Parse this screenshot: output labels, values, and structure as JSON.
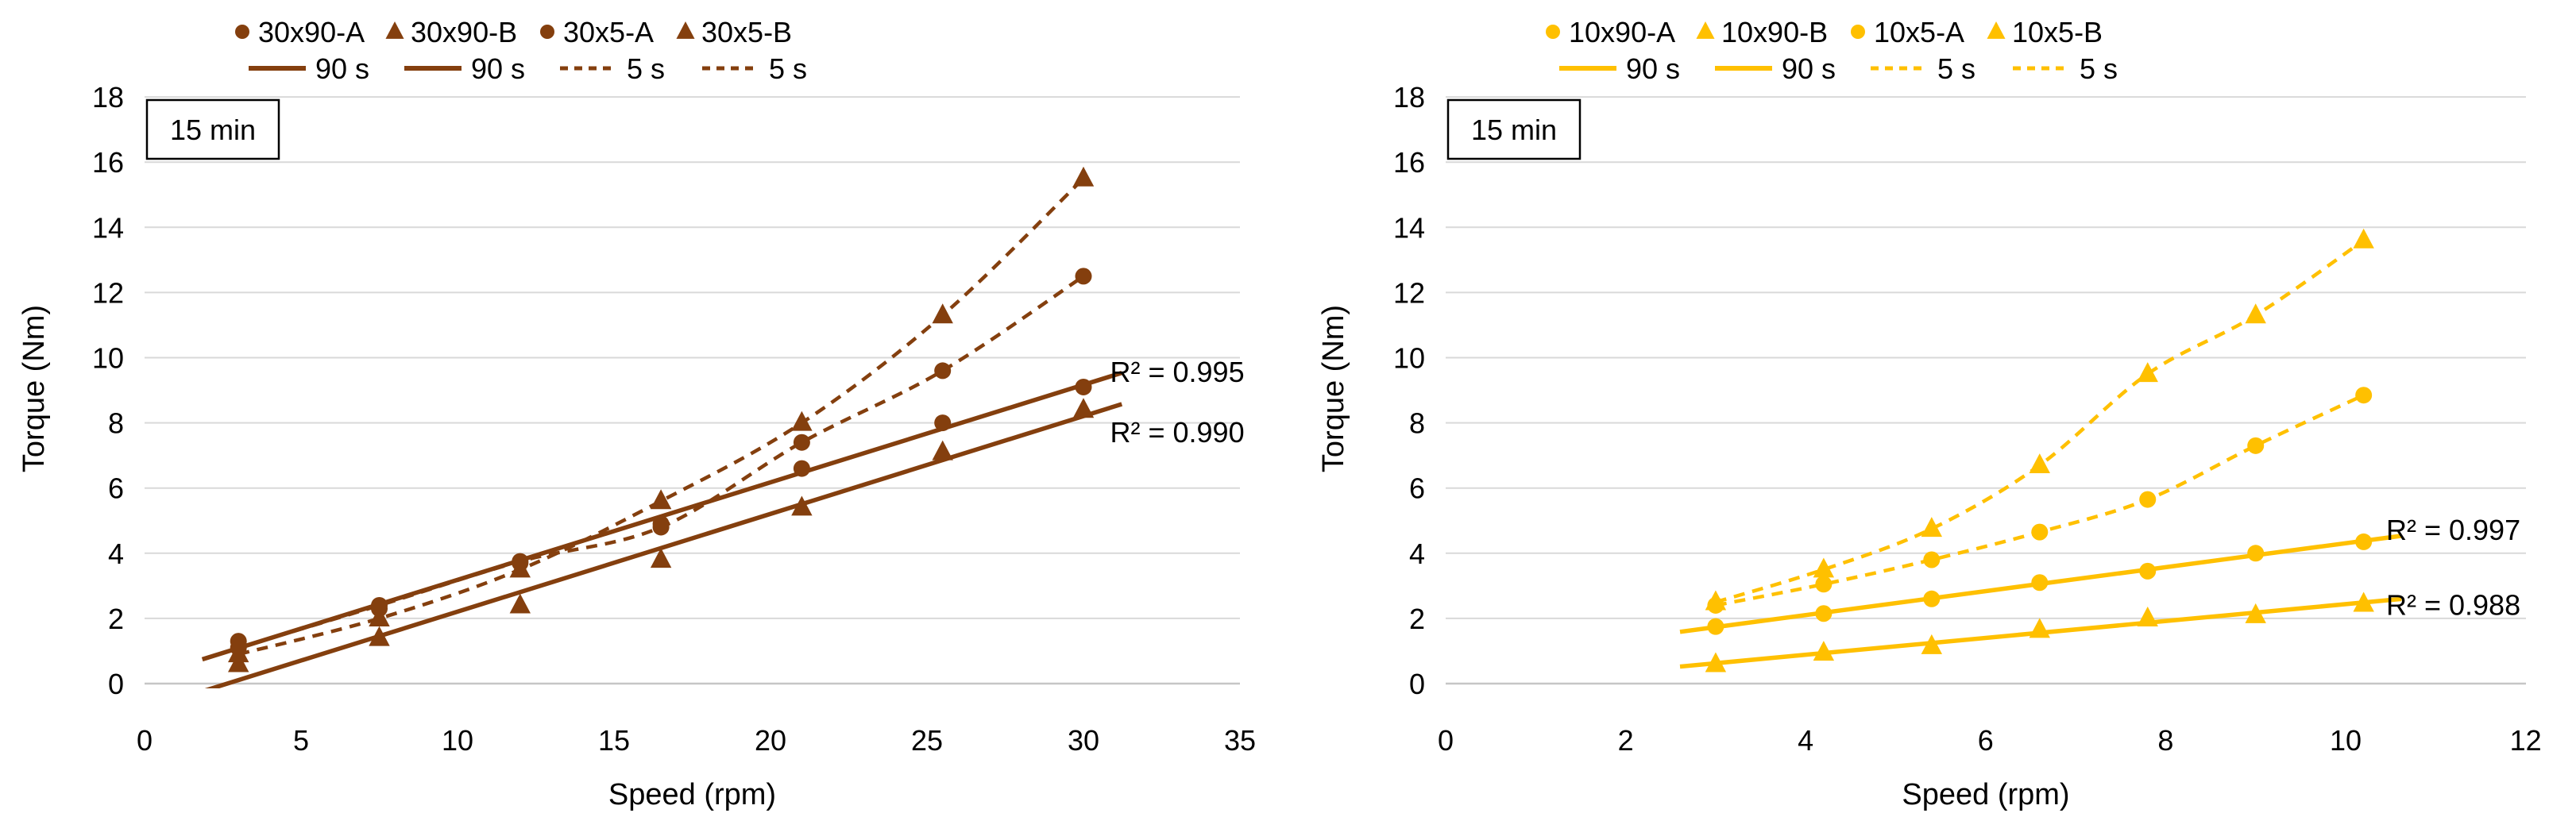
{
  "page": {
    "background": "#FFFFFF"
  },
  "chart_data": [
    {
      "type": "scatter",
      "title": "",
      "annotation_box": "15 min",
      "xlabel": "Speed (rpm)",
      "ylabel": "Torque (Nm)",
      "xlim": [
        0,
        35
      ],
      "ylim": [
        0,
        18
      ],
      "x_ticks": [
        0,
        5,
        10,
        15,
        20,
        25,
        30,
        35
      ],
      "y_ticks": [
        0,
        2,
        4,
        6,
        8,
        10,
        12,
        14,
        16,
        18
      ],
      "grid": true,
      "legend_position": "top",
      "color": "#843F0E",
      "grid_color": "#D9D9D9",
      "legend_markers": [
        {
          "label": "30x90-A",
          "marker": "circle"
        },
        {
          "label": "30x90-B",
          "marker": "triangle"
        },
        {
          "label": "30x5-A",
          "marker": "circle"
        },
        {
          "label": "30x5-B",
          "marker": "triangle"
        }
      ],
      "legend_lines": [
        {
          "label": "90 s",
          "style": "solid"
        },
        {
          "label": "90 s",
          "style": "solid"
        },
        {
          "label": "5 s",
          "style": "dashed"
        },
        {
          "label": "5 s",
          "style": "dashed"
        }
      ],
      "series": [
        {
          "name": "30x90-A",
          "marker": "circle",
          "trend": "linear",
          "line_style": "solid",
          "x": [
            3,
            7.5,
            12,
            16.5,
            21,
            25.5,
            30
          ],
          "y": [
            1.3,
            2.3,
            3.7,
            4.9,
            6.6,
            8.0,
            9.1
          ]
        },
        {
          "name": "30x90-B",
          "marker": "triangle",
          "trend": "linear",
          "line_style": "solid",
          "x": [
            3,
            7.5,
            12,
            16.5,
            21,
            25.5,
            30
          ],
          "y": [
            0.6,
            1.4,
            2.4,
            3.8,
            5.4,
            7.1,
            8.4
          ]
        },
        {
          "name": "30x5-A",
          "marker": "circle",
          "trend": "smooth",
          "line_style": "dashed",
          "x": [
            3,
            7.5,
            12,
            16.5,
            21,
            25.5,
            30
          ],
          "y": [
            1.1,
            2.4,
            3.75,
            4.8,
            7.4,
            9.6,
            12.5
          ]
        },
        {
          "name": "30x5-B",
          "marker": "triangle",
          "trend": "smooth",
          "line_style": "dashed",
          "x": [
            3,
            7.5,
            12,
            16.5,
            21,
            25.5,
            30
          ],
          "y": [
            0.9,
            2.0,
            3.5,
            5.6,
            8.0,
            11.3,
            15.5
          ]
        }
      ],
      "annotations": [
        {
          "text": "R² = 0.995",
          "x": 30.85,
          "y": 9.55
        },
        {
          "text": "R² = 0.990",
          "x": 30.85,
          "y": 7.7
        }
      ]
    },
    {
      "type": "scatter",
      "title": "",
      "annotation_box": "15 min",
      "xlabel": "Speed (rpm)",
      "ylabel": "Torque (Nm)",
      "xlim": [
        0,
        12
      ],
      "ylim": [
        0,
        18
      ],
      "x_ticks": [
        0,
        2,
        4,
        6,
        8,
        10,
        12
      ],
      "y_ticks": [
        0,
        2,
        4,
        6,
        8,
        10,
        12,
        14,
        16,
        18
      ],
      "grid": true,
      "legend_position": "top",
      "color": "#FFC000",
      "grid_color": "#D9D9D9",
      "legend_markers": [
        {
          "label": "10x90-A",
          "marker": "circle"
        },
        {
          "label": "10x90-B",
          "marker": "triangle"
        },
        {
          "label": "10x5-A",
          "marker": "circle"
        },
        {
          "label": "10x5-B",
          "marker": "triangle"
        }
      ],
      "legend_lines": [
        {
          "label": "90 s",
          "style": "solid"
        },
        {
          "label": "90 s",
          "style": "solid"
        },
        {
          "label": "5 s",
          "style": "dashed"
        },
        {
          "label": "5 s",
          "style": "dashed"
        }
      ],
      "series": [
        {
          "name": "10x90-A",
          "marker": "circle",
          "trend": "linear",
          "line_style": "solid",
          "x": [
            3,
            4.2,
            5.4,
            6.6,
            7.8,
            9,
            10.2
          ],
          "y": [
            1.75,
            2.15,
            2.6,
            3.1,
            3.45,
            4.0,
            4.35
          ]
        },
        {
          "name": "10x90-B",
          "marker": "triangle",
          "trend": "linear",
          "line_style": "solid",
          "x": [
            3,
            4.2,
            5.4,
            6.6,
            7.8,
            9,
            10.2
          ],
          "y": [
            0.6,
            0.95,
            1.15,
            1.65,
            2.0,
            2.1,
            2.45
          ]
        },
        {
          "name": "10x5-A",
          "marker": "circle",
          "trend": "smooth",
          "line_style": "dashed",
          "x": [
            3,
            4.2,
            5.4,
            6.6,
            7.8,
            9,
            10.2
          ],
          "y": [
            2.4,
            3.05,
            3.8,
            4.65,
            5.65,
            7.3,
            8.85
          ]
        },
        {
          "name": "10x5-B",
          "marker": "triangle",
          "trend": "smooth",
          "line_style": "dashed",
          "x": [
            3,
            4.2,
            5.4,
            6.6,
            7.8,
            9,
            10.2
          ],
          "y": [
            2.5,
            3.5,
            4.75,
            6.7,
            9.5,
            11.3,
            13.6
          ]
        }
      ],
      "annotations": [
        {
          "text": "R² = 0.997",
          "x": 10.45,
          "y": 4.7
        },
        {
          "text": "R² = 0.988",
          "x": 10.45,
          "y": 2.4
        }
      ]
    }
  ]
}
